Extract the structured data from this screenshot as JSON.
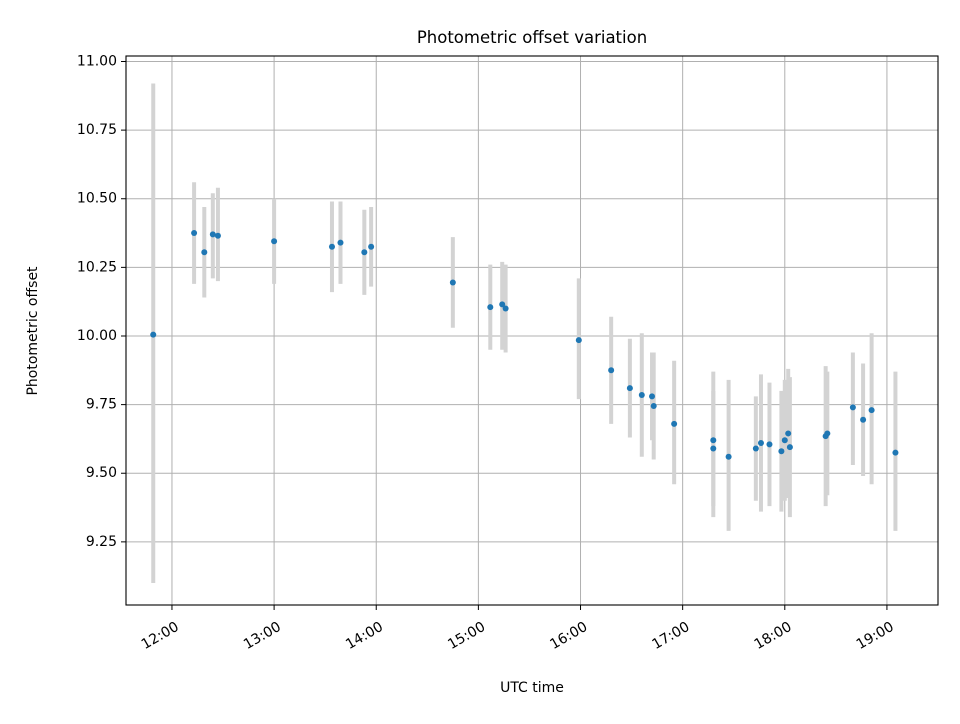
{
  "chart_data": {
    "type": "scatter",
    "title": "Photometric offset variation",
    "xlabel": "UTC time",
    "ylabel": "Photometric offset",
    "x_axis": "time",
    "grid": true,
    "xlim": [
      "11:33",
      "19:30"
    ],
    "ylim": [
      9.02,
      11.02
    ],
    "x_ticks": [
      "12:00",
      "13:00",
      "14:00",
      "15:00",
      "16:00",
      "17:00",
      "18:00",
      "19:00"
    ],
    "y_ticks": [
      "9.25",
      "9.50",
      "9.75",
      "10.00",
      "10.25",
      "10.50",
      "10.75",
      "11.00"
    ],
    "colors": {
      "point": "#1f77b4",
      "errorbar": "#d3d3d3",
      "grid": "#b0b0b0"
    },
    "series": [
      {
        "points": [
          {
            "time": "11:49",
            "y": 10.005,
            "low": 9.1,
            "high": 10.92
          },
          {
            "time": "12:13",
            "y": 10.375,
            "low": 10.19,
            "high": 10.56
          },
          {
            "time": "12:19",
            "y": 10.305,
            "low": 10.14,
            "high": 10.47
          },
          {
            "time": "12:24",
            "y": 10.37,
            "low": 10.21,
            "high": 10.52
          },
          {
            "time": "12:27",
            "y": 10.365,
            "low": 10.2,
            "high": 10.54
          },
          {
            "time": "13:00",
            "y": 10.345,
            "low": 10.19,
            "high": 10.5
          },
          {
            "time": "13:34",
            "y": 10.325,
            "low": 10.16,
            "high": 10.49
          },
          {
            "time": "13:39",
            "y": 10.34,
            "low": 10.19,
            "high": 10.49
          },
          {
            "time": "13:53",
            "y": 10.305,
            "low": 10.15,
            "high": 10.46
          },
          {
            "time": "13:57",
            "y": 10.325,
            "low": 10.18,
            "high": 10.47
          },
          {
            "time": "14:45",
            "y": 10.195,
            "low": 10.03,
            "high": 10.36
          },
          {
            "time": "15:07",
            "y": 10.105,
            "low": 9.95,
            "high": 10.26
          },
          {
            "time": "15:14",
            "y": 10.115,
            "low": 9.95,
            "high": 10.27
          },
          {
            "time": "15:16",
            "y": 10.1,
            "low": 9.94,
            "high": 10.26
          },
          {
            "time": "15:59",
            "y": 9.985,
            "low": 9.77,
            "high": 10.21
          },
          {
            "time": "16:18",
            "y": 9.875,
            "low": 9.68,
            "high": 10.07
          },
          {
            "time": "16:29",
            "y": 9.81,
            "low": 9.63,
            "high": 9.99
          },
          {
            "time": "16:36",
            "y": 9.785,
            "low": 9.56,
            "high": 10.01
          },
          {
            "time": "16:42",
            "y": 9.78,
            "low": 9.62,
            "high": 9.94
          },
          {
            "time": "16:43",
            "y": 9.745,
            "low": 9.55,
            "high": 9.94
          },
          {
            "time": "16:55",
            "y": 9.68,
            "low": 9.46,
            "high": 9.91
          },
          {
            "time": "17:18",
            "y": 9.62,
            "low": 9.34,
            "high": 9.87
          },
          {
            "time": "17:18",
            "y": 9.59,
            "low": 9.38,
            "high": 9.8
          },
          {
            "time": "17:27",
            "y": 9.56,
            "low": 9.29,
            "high": 9.84
          },
          {
            "time": "17:43",
            "y": 9.59,
            "low": 9.4,
            "high": 9.78
          },
          {
            "time": "17:46",
            "y": 9.61,
            "low": 9.36,
            "high": 9.86
          },
          {
            "time": "17:51",
            "y": 9.605,
            "low": 9.38,
            "high": 9.83
          },
          {
            "time": "17:58",
            "y": 9.58,
            "low": 9.36,
            "high": 9.8
          },
          {
            "time": "18:00",
            "y": 9.62,
            "low": 9.4,
            "high": 9.84
          },
          {
            "time": "18:02",
            "y": 9.645,
            "low": 9.41,
            "high": 9.88
          },
          {
            "time": "18:03",
            "y": 9.595,
            "low": 9.34,
            "high": 9.85
          },
          {
            "time": "18:24",
            "y": 9.635,
            "low": 9.38,
            "high": 9.89
          },
          {
            "time": "18:25",
            "y": 9.645,
            "low": 9.42,
            "high": 9.87
          },
          {
            "time": "18:40",
            "y": 9.74,
            "low": 9.53,
            "high": 9.94
          },
          {
            "time": "18:46",
            "y": 9.695,
            "low": 9.49,
            "high": 9.9
          },
          {
            "time": "18:51",
            "y": 9.73,
            "low": 9.46,
            "high": 10.01
          },
          {
            "time": "19:05",
            "y": 9.575,
            "low": 9.29,
            "high": 9.87
          }
        ]
      }
    ]
  }
}
